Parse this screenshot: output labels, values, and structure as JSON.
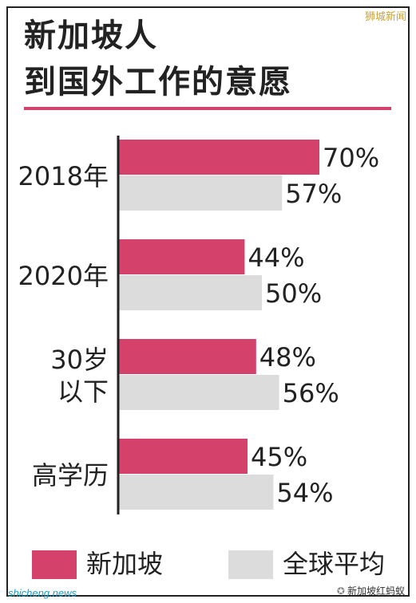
{
  "watermark_top": "狮城新闻",
  "watermark_bottom_left": "shicheng.news",
  "watermark_bottom_right": "新加坡红蚂蚁",
  "colors": {
    "singapore": "#d4416a",
    "global": "#dcdcdc",
    "axis": "#222222"
  },
  "chart_data": {
    "type": "bar",
    "orientation": "horizontal",
    "title_lines": [
      "新加坡人",
      "到国外工作的意愿"
    ],
    "categories": [
      {
        "lines": [
          "2018年"
        ]
      },
      {
        "lines": [
          "2020年"
        ]
      },
      {
        "lines": [
          "30岁",
          "以下"
        ]
      },
      {
        "lines": [
          "高学历"
        ]
      }
    ],
    "series": [
      {
        "name": "新加坡",
        "values": [
          70,
          44,
          48,
          45
        ],
        "labels": [
          "70%",
          "44%",
          "48%",
          "45%"
        ]
      },
      {
        "name": "全球平均",
        "values": [
          57,
          50,
          56,
          54
        ],
        "labels": [
          "57%",
          "50%",
          "56%",
          "54%"
        ]
      }
    ],
    "xlim": [
      0,
      100
    ],
    "grid": false,
    "legend_position": "bottom"
  }
}
